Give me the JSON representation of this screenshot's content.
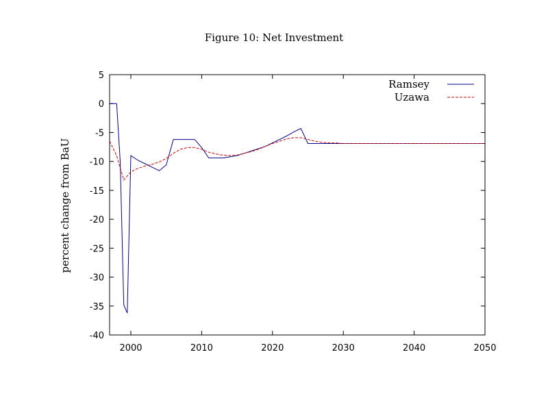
{
  "chart_data": {
    "type": "line",
    "title": "Figure 10: Net Investment",
    "xlabel": "",
    "ylabel": "percent change from BaU",
    "xlim": [
      1997,
      2050
    ],
    "ylim": [
      -40,
      5
    ],
    "xticks": [
      2000,
      2010,
      2020,
      2030,
      2040,
      2050
    ],
    "yticks": [
      5,
      0,
      -5,
      -10,
      -15,
      -20,
      -25,
      -30,
      -35,
      -40
    ],
    "grid": false,
    "legend_position": "top-right",
    "series": [
      {
        "name": "Ramsey",
        "color": "#00008b",
        "dash": "solid",
        "x": [
          1997,
          1998,
          1998.5,
          1999,
          1999.5,
          2000,
          2001,
          2002,
          2003,
          2004,
          2005,
          2006,
          2007,
          2008,
          2009,
          2010,
          2011,
          2012,
          2013,
          2014,
          2015,
          2016,
          2017,
          2018,
          2019,
          2020,
          2021,
          2022,
          2023,
          2024,
          2025,
          2026,
          2027,
          2028,
          2029,
          2030,
          2035,
          2040,
          2045,
          2050
        ],
        "y": [
          0.0,
          0.0,
          -10.0,
          -34.8,
          -36.2,
          -9.0,
          -9.8,
          -10.4,
          -11.0,
          -11.6,
          -10.6,
          -6.2,
          -6.2,
          -6.2,
          -6.2,
          -7.6,
          -9.4,
          -9.4,
          -9.4,
          -9.2,
          -9.0,
          -8.6,
          -8.2,
          -7.8,
          -7.4,
          -6.8,
          -6.2,
          -5.6,
          -4.9,
          -4.3,
          -6.9,
          -6.9,
          -6.9,
          -6.9,
          -6.9,
          -6.9,
          -6.9,
          -6.9,
          -6.9,
          -6.9
        ]
      },
      {
        "name": "Uzawa",
        "color": "#cc0000",
        "dash": "dashed",
        "x": [
          1997,
          1998,
          1999,
          2000,
          2001,
          2002,
          2003,
          2004,
          2005,
          2006,
          2007,
          2008,
          2009,
          2010,
          2011,
          2012,
          2013,
          2014,
          2015,
          2016,
          2017,
          2018,
          2019,
          2020,
          2021,
          2022,
          2023,
          2024,
          2025,
          2026,
          2027,
          2028,
          2029,
          2030,
          2035,
          2040,
          2045,
          2050
        ],
        "y": [
          -6.5,
          -9.0,
          -13.2,
          -11.8,
          -11.2,
          -10.8,
          -10.5,
          -10.1,
          -9.5,
          -8.6,
          -7.9,
          -7.6,
          -7.6,
          -7.9,
          -8.4,
          -8.7,
          -8.9,
          -9.0,
          -8.9,
          -8.6,
          -8.3,
          -7.9,
          -7.4,
          -6.9,
          -6.5,
          -6.1,
          -5.9,
          -5.9,
          -6.2,
          -6.5,
          -6.7,
          -6.8,
          -6.8,
          -6.9,
          -6.9,
          -6.9,
          -6.9,
          -6.9
        ]
      }
    ]
  }
}
